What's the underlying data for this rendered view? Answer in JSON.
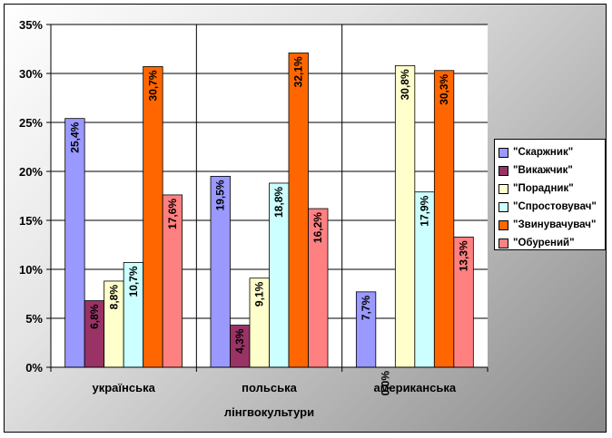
{
  "chart_data": {
    "type": "bar",
    "title": "",
    "xlabel": "лінгвокультури",
    "ylabel": "",
    "ylim": [
      0,
      35
    ],
    "y_ticks": [
      "0%",
      "5%",
      "10%",
      "15%",
      "20%",
      "25%",
      "30%",
      "35%"
    ],
    "categories": [
      "українська",
      "польська",
      "американська"
    ],
    "grid": true,
    "legend_position": "right",
    "series": [
      {
        "name": "\"Скаржник\"",
        "color": "#9999ff",
        "values": [
          25.4,
          19.5,
          7.7
        ],
        "labels": [
          "25,4%",
          "19,5%",
          "7,7%"
        ]
      },
      {
        "name": "\"Викажчик\"",
        "color": "#993366",
        "values": [
          6.8,
          4.3,
          0.0
        ],
        "labels": [
          "6,8%",
          "4,3%",
          "0,0%"
        ]
      },
      {
        "name": "\"Порадник\"",
        "color": "#ffffcc",
        "values": [
          8.8,
          9.1,
          30.8
        ],
        "labels": [
          "8,8%",
          "9,1%",
          "30,8%"
        ]
      },
      {
        "name": "\"Спростовувач\"",
        "color": "#ccffff",
        "values": [
          10.7,
          18.8,
          17.9
        ],
        "labels": [
          "10,7%",
          "18,8%",
          "17,9%"
        ]
      },
      {
        "name": "\"Звинувачувач\"",
        "color": "#ff6600",
        "values": [
          30.7,
          32.1,
          30.3
        ],
        "labels": [
          "30,7%",
          "32,1%",
          "30,3%"
        ]
      },
      {
        "name": "\"Обурений\"",
        "color": "#ff8080",
        "values": [
          17.6,
          16.2,
          13.3
        ],
        "labels": [
          "17,6%",
          "16,2%",
          "13,3%"
        ]
      }
    ]
  }
}
